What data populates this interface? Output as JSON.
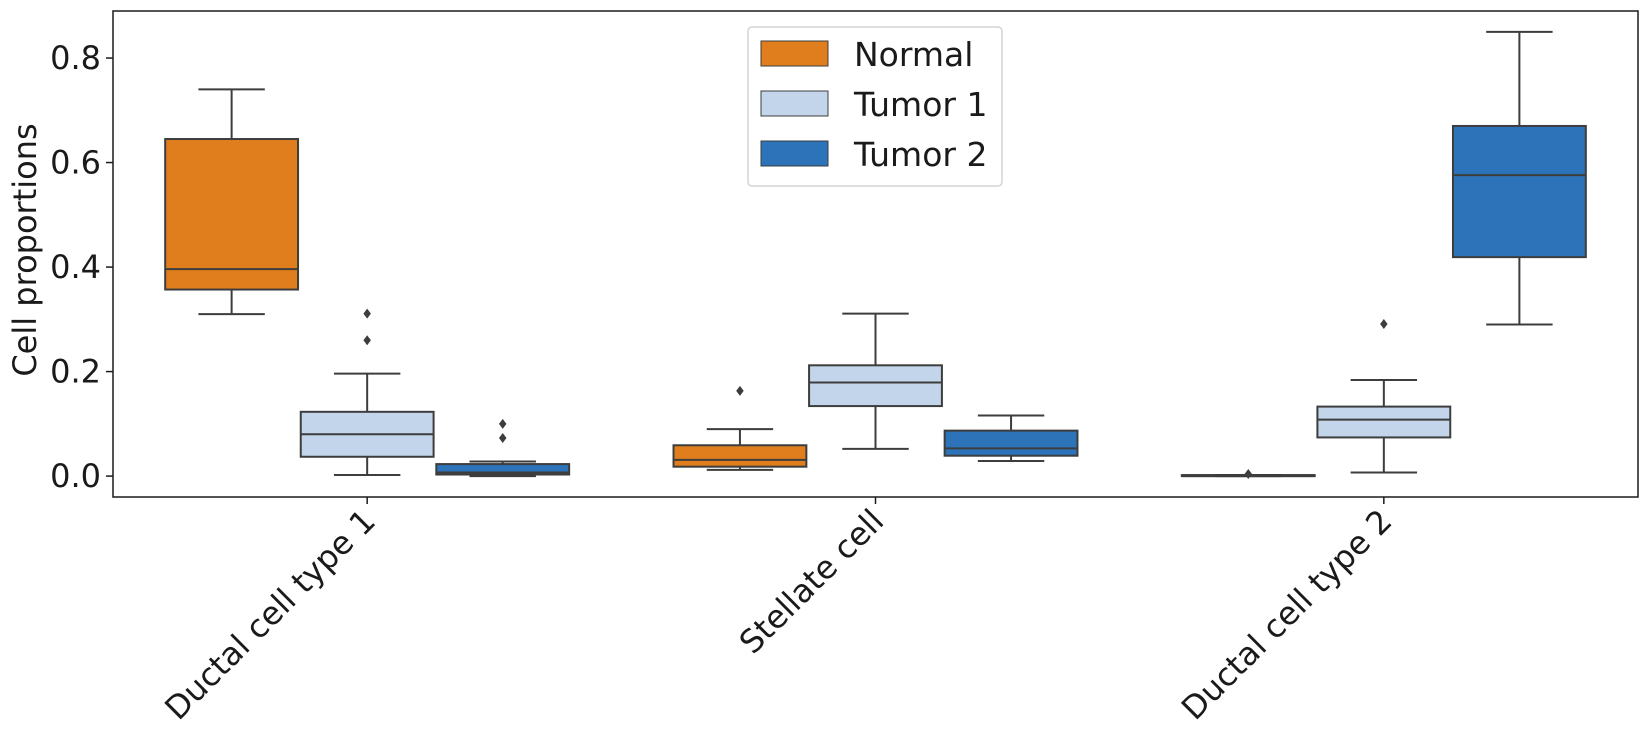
{
  "chart_data": {
    "type": "box",
    "ylabel": "Cell proportions",
    "ylim": [
      -0.04,
      0.89
    ],
    "yticks": [
      "0.0",
      "0.2",
      "0.4",
      "0.6",
      "0.8"
    ],
    "categories": [
      "Ductal cell type 1",
      "Stellate cell",
      "Ductal cell type 2"
    ],
    "legend": {
      "placement": "top-center"
    },
    "grid": false,
    "series": [
      {
        "name": "Normal",
        "color": "#e07e1e",
        "boxes": [
          {
            "whislo": 0.31,
            "q1": 0.357,
            "med": 0.396,
            "q3": 0.645,
            "whishi": 0.74,
            "fliers": []
          },
          {
            "whislo": 0.012,
            "q1": 0.018,
            "med": 0.031,
            "q3": 0.059,
            "whishi": 0.09,
            "fliers": [
              0.163
            ]
          },
          {
            "whislo": 0.0,
            "q1": 0.0,
            "med": 0.0,
            "q3": 0.002,
            "whishi": 0.002,
            "fliers": [
              0.004
            ]
          }
        ]
      },
      {
        "name": "Tumor 1",
        "color": "#c3d5ea",
        "boxes": [
          {
            "whislo": 0.002,
            "q1": 0.037,
            "med": 0.08,
            "q3": 0.123,
            "whishi": 0.196,
            "fliers": [
              0.26,
              0.311
            ]
          },
          {
            "whislo": 0.052,
            "q1": 0.134,
            "med": 0.179,
            "q3": 0.212,
            "whishi": 0.311,
            "fliers": []
          },
          {
            "whislo": 0.007,
            "q1": 0.074,
            "med": 0.108,
            "q3": 0.133,
            "whishi": 0.184,
            "fliers": [
              0.291
            ]
          }
        ]
      },
      {
        "name": "Tumor 2",
        "color": "#2c73ba",
        "boxes": [
          {
            "whislo": 0.0,
            "q1": 0.003,
            "med": 0.007,
            "q3": 0.023,
            "whishi": 0.028,
            "fliers": [
              0.073,
              0.1
            ]
          },
          {
            "whislo": 0.029,
            "q1": 0.039,
            "med": 0.053,
            "q3": 0.087,
            "whishi": 0.116,
            "fliers": []
          },
          {
            "whislo": 0.29,
            "q1": 0.419,
            "med": 0.576,
            "q3": 0.67,
            "whishi": 0.85,
            "fliers": []
          }
        ]
      }
    ]
  }
}
